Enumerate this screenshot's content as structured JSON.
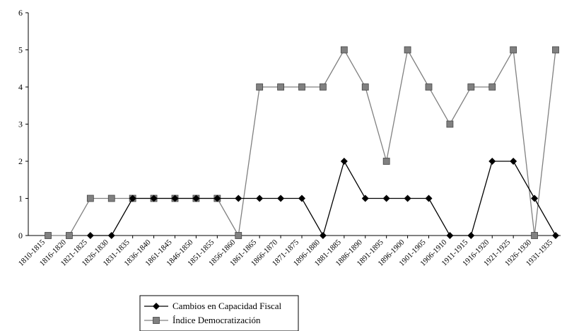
{
  "chart_data": {
    "type": "line",
    "categories": [
      "1810-1815",
      "1816-1820",
      "1821-1825",
      "1826-1830",
      "1831-1835",
      "1836-1840",
      "1861-1845",
      "1846-1850",
      "1851-1855",
      "1856-1860",
      "1861-1865",
      "1866-1870",
      "1871-1875",
      "1896-1880",
      "1881-1885",
      "1886-1890",
      "1891-1895",
      "1896-1900",
      "1901-1905",
      "1906-1910",
      "1911-1915",
      "1916-1920",
      "1921-1925",
      "1926-1930",
      "1931-1935"
    ],
    "series": [
      {
        "name": "Cambios en Capacidad Fiscal",
        "color": "#000000",
        "marker": "diamond",
        "values": [
          null,
          null,
          0,
          0,
          1,
          1,
          1,
          1,
          1,
          1,
          1,
          1,
          1,
          0,
          2,
          1,
          1,
          1,
          1,
          0,
          0,
          2,
          2,
          1,
          0
        ]
      },
      {
        "name": "Índice Democratización",
        "color": "#808080",
        "marker": "square",
        "values": [
          0,
          0,
          1,
          1,
          1,
          1,
          1,
          1,
          1,
          0,
          4,
          4,
          4,
          4,
          5,
          4,
          2,
          5,
          4,
          3,
          4,
          4,
          5,
          0,
          5
        ]
      }
    ],
    "ylim": [
      0,
      6
    ],
    "yticks": [
      0,
      1,
      2,
      3,
      4,
      5,
      6
    ],
    "grid": false,
    "legend": "bottom"
  }
}
